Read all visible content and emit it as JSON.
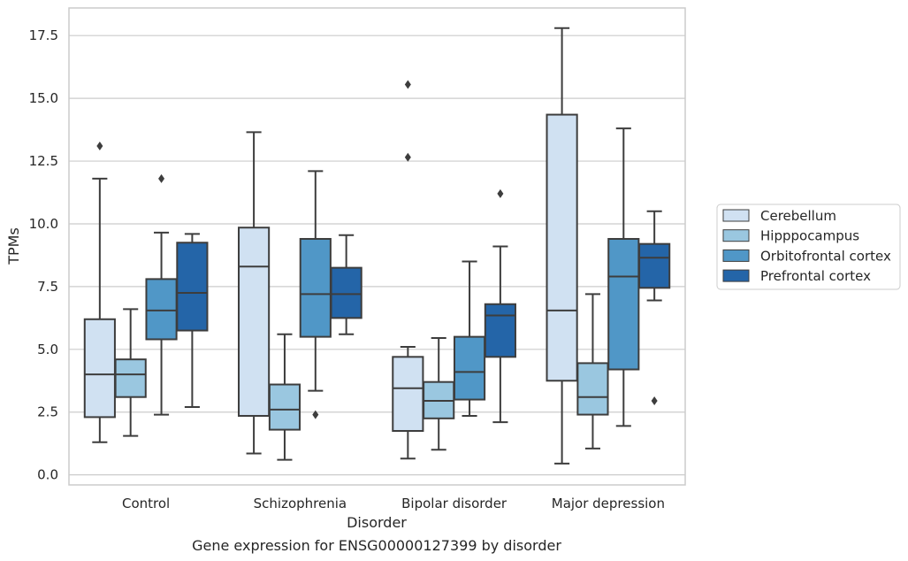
{
  "chart_data": {
    "type": "box",
    "title": "",
    "xlabel": "Disorder",
    "ylabel": "TPMs",
    "caption": "Gene expression for ENSG00000127399 by disorder",
    "ylim": [
      -0.4,
      18.6
    ],
    "yticks": [
      0.0,
      2.5,
      5.0,
      7.5,
      10.0,
      12.5,
      15.0,
      17.5
    ],
    "ytick_labels": [
      "0.0",
      "2.5",
      "5.0",
      "7.5",
      "10.0",
      "12.5",
      "15.0",
      "17.5"
    ],
    "grid": "horizontal",
    "legend_position": "right",
    "categories": [
      "Control",
      "Schizophrenia",
      "Bipolar disorder",
      "Major depression"
    ],
    "series": [
      {
        "name": "Cerebellum",
        "color": "#d0e1f2",
        "boxes": [
          {
            "whisker_low": 1.3,
            "q1": 2.3,
            "median": 4.0,
            "q3": 6.2,
            "whisker_high": 11.8,
            "outliers": [
              13.1
            ]
          },
          {
            "whisker_low": 0.85,
            "q1": 2.35,
            "median": 8.3,
            "q3": 9.85,
            "whisker_high": 13.65,
            "outliers": []
          },
          {
            "whisker_low": 0.65,
            "q1": 1.75,
            "median": 3.45,
            "q3": 4.7,
            "whisker_high": 5.1,
            "outliers": [
              12.65,
              15.55
            ]
          },
          {
            "whisker_low": 0.45,
            "q1": 3.75,
            "median": 6.55,
            "q3": 14.35,
            "whisker_high": 17.8,
            "outliers": []
          }
        ]
      },
      {
        "name": "Hipppocampus",
        "color": "#9ac7e0",
        "boxes": [
          {
            "whisker_low": 1.55,
            "q1": 3.1,
            "median": 4.0,
            "q3": 4.6,
            "whisker_high": 6.6,
            "outliers": []
          },
          {
            "whisker_low": 0.6,
            "q1": 1.8,
            "median": 2.6,
            "q3": 3.6,
            "whisker_high": 5.6,
            "outliers": []
          },
          {
            "whisker_low": 1.0,
            "q1": 2.25,
            "median": 2.95,
            "q3": 3.7,
            "whisker_high": 5.45,
            "outliers": []
          },
          {
            "whisker_low": 1.05,
            "q1": 2.4,
            "median": 3.1,
            "q3": 4.45,
            "whisker_high": 7.2,
            "outliers": []
          }
        ]
      },
      {
        "name": "Orbitofrontal cortex",
        "color": "#5097c7",
        "boxes": [
          {
            "whisker_low": 2.4,
            "q1": 5.4,
            "median": 6.55,
            "q3": 7.8,
            "whisker_high": 9.65,
            "outliers": [
              11.8
            ]
          },
          {
            "whisker_low": 3.35,
            "q1": 5.5,
            "median": 7.2,
            "q3": 9.4,
            "whisker_high": 12.1,
            "outliers": [
              2.4
            ]
          },
          {
            "whisker_low": 2.35,
            "q1": 3.0,
            "median": 4.1,
            "q3": 5.5,
            "whisker_high": 8.5,
            "outliers": []
          },
          {
            "whisker_low": 1.95,
            "q1": 4.2,
            "median": 7.9,
            "q3": 9.4,
            "whisker_high": 13.8,
            "outliers": []
          }
        ]
      },
      {
        "name": "Prefrontal cortex",
        "color": "#2465a8",
        "boxes": [
          {
            "whisker_low": 2.7,
            "q1": 5.75,
            "median": 7.25,
            "q3": 9.25,
            "whisker_high": 9.6,
            "outliers": []
          },
          {
            "whisker_low": 5.6,
            "q1": 6.25,
            "median": 7.2,
            "q3": 8.25,
            "whisker_high": 9.55,
            "outliers": []
          },
          {
            "whisker_low": 2.1,
            "q1": 4.7,
            "median": 6.35,
            "q3": 6.8,
            "whisker_high": 9.1,
            "outliers": [
              11.2
            ]
          },
          {
            "whisker_low": 6.95,
            "q1": 7.45,
            "median": 8.65,
            "q3": 9.2,
            "whisker_high": 10.5,
            "outliers": [
              2.95
            ]
          }
        ]
      }
    ]
  }
}
